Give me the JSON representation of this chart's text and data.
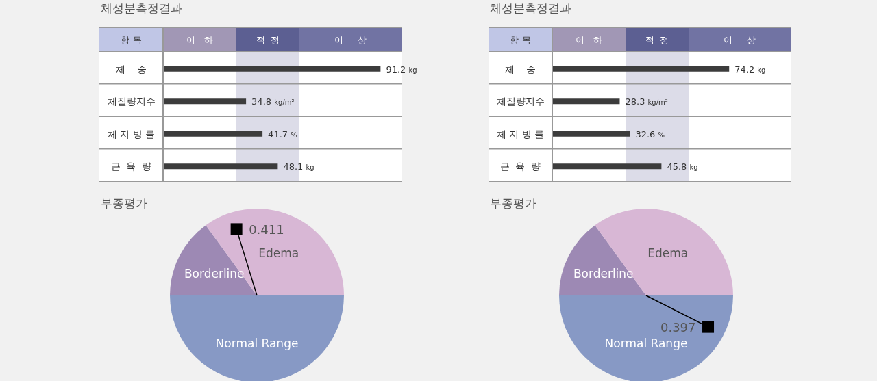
{
  "chart_data": [
    {
      "type": "bar",
      "orientation": "horizontal",
      "title": "체성분측정결과",
      "ylabel": "항 목",
      "categories": [
        "체    중",
        "체질량지수",
        "체 지 방 률",
        "근  육  량"
      ],
      "values": [
        91.2,
        34.8,
        41.7,
        48.1
      ],
      "color": "#3c3c3c",
      "xlim": [
        0,
        100
      ],
      "value_labels": [
        "91.2 kg",
        "34.8 kg/m²",
        "41.7 %",
        "48.1 kg"
      ],
      "annotations": [
        "이   하",
        "적  정",
        "이     상"
      ]
    },
    {
      "type": "bar",
      "orientation": "horizontal",
      "title": "체성분측정결과",
      "ylabel": "항 목",
      "categories": [
        "체    중",
        "체질량지수",
        "체 지 방 률",
        "근  육  량"
      ],
      "values": [
        74.2,
        28.3,
        32.6,
        45.8
      ],
      "color": "#3c3c3c",
      "xlim": [
        0,
        100
      ],
      "value_labels": [
        "74.2 kg",
        "28.3 kg/m²",
        "32.6 %",
        "45.8 kg"
      ],
      "annotations": [
        "이   하",
        "적  정",
        "이     상"
      ]
    },
    {
      "type": "pie",
      "title": "부종평가",
      "categories": [
        "Normal Range",
        "Borderline",
        "Edema"
      ],
      "values": [
        50,
        15,
        35
      ],
      "colors": [
        "#8799c5",
        "#9d89b4",
        "#d8b7d5"
      ],
      "needle": "Edema",
      "annotations": [
        "0.411"
      ]
    },
    {
      "type": "pie",
      "title": "부종평가",
      "categories": [
        "Normal Range",
        "Borderline",
        "Edema"
      ],
      "values": [
        50,
        15,
        35
      ],
      "colors": [
        "#8799c5",
        "#9d89b4",
        "#d8b7d5"
      ],
      "needle": "Normal Range",
      "annotations": [
        "0.397"
      ]
    }
  ]
}
